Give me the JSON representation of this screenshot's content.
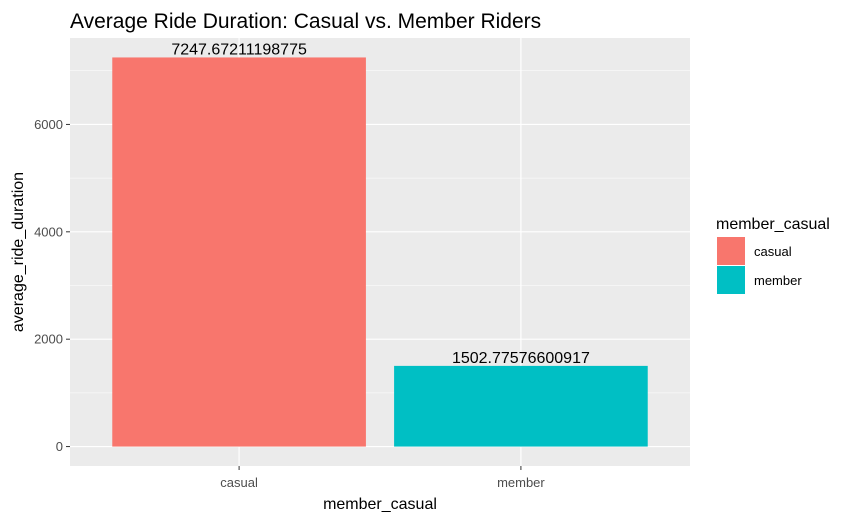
{
  "chart_data": {
    "type": "bar",
    "title": "Average Ride Duration: Casual vs. Member Riders",
    "xlabel": "member_casual",
    "ylabel": "average_ride_duration",
    "categories": [
      "casual",
      "member"
    ],
    "values": [
      7247.67211198775,
      1502.77576600917
    ],
    "data_labels": [
      "7247.67211198775",
      "1502.77576600917"
    ],
    "colors": [
      "#F8766D",
      "#00BFC4"
    ],
    "ylim": [
      -362,
      7610
    ],
    "yticks": [
      0,
      2000,
      4000,
      6000
    ],
    "ytick_labels": [
      "0",
      "2000",
      "4000",
      "6000"
    ],
    "grid": true,
    "panel_background": "#EBEBEB",
    "gridline_color": "#FFFFFF",
    "legend": {
      "title": "member_casual",
      "placement": "right",
      "entries": [
        "casual",
        "member"
      ]
    }
  }
}
